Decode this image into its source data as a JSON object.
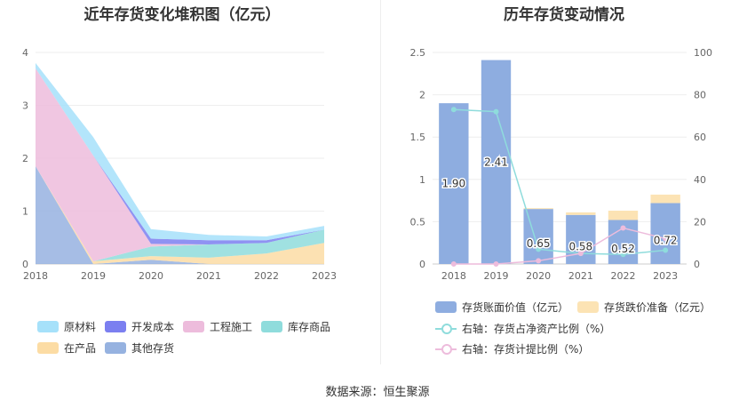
{
  "left_chart": {
    "title": "近年存货变化堆积图（亿元）",
    "legend": [
      {
        "label": "原材料",
        "color": "#a6e1fa"
      },
      {
        "label": "开发成本",
        "color": "#7b7ff0"
      },
      {
        "label": "工程施工",
        "color": "#edbcdc"
      },
      {
        "label": "库存商品",
        "color": "#8fdcdc"
      },
      {
        "label": "在产品",
        "color": "#fcdca4"
      },
      {
        "label": "其他存货",
        "color": "#96b2e0"
      }
    ]
  },
  "right_chart": {
    "title": "历年存货变动情况",
    "legend": [
      {
        "label": "存货账面价值（亿元）",
        "color": "#8eade0"
      },
      {
        "label": "存货跌价准备（亿元）",
        "color": "#fce3b4"
      },
      {
        "label": "右轴：存货占净资产比例（%）",
        "color": "#8fdcdc"
      },
      {
        "label": "右轴：存货计提比例（%）",
        "color": "#edbcdc"
      }
    ]
  },
  "source": "数据来源：恒生聚源",
  "chart_data": [
    {
      "type": "area",
      "stacked": true,
      "title": "近年存货变化堆积图（亿元）",
      "x": [
        "2018",
        "2019",
        "2020",
        "2021",
        "2022",
        "2023"
      ],
      "ylim": [
        0,
        4
      ],
      "yticks": [
        0,
        1,
        2,
        3,
        4
      ],
      "grid": true,
      "legend_position": "bottom",
      "series": [
        {
          "name": "其他存货",
          "color": "#96b2e0",
          "values": [
            1.85,
            0.0,
            0.08,
            0.0,
            0.0,
            0.0
          ]
        },
        {
          "name": "在产品",
          "color": "#fcdca4",
          "values": [
            0.0,
            0.05,
            0.07,
            0.12,
            0.2,
            0.4
          ]
        },
        {
          "name": "库存商品",
          "color": "#8fdcdc",
          "values": [
            0.0,
            0.0,
            0.18,
            0.25,
            0.2,
            0.25
          ]
        },
        {
          "name": "工程施工",
          "color": "#edbcdc",
          "values": [
            1.85,
            2.0,
            0.05,
            0.0,
            0.0,
            0.0
          ]
        },
        {
          "name": "开发成本",
          "color": "#7b7ff0",
          "values": [
            0.0,
            0.0,
            0.1,
            0.08,
            0.05,
            0.0
          ]
        },
        {
          "name": "原材料",
          "color": "#a6e1fa",
          "values": [
            0.1,
            0.35,
            0.18,
            0.1,
            0.07,
            0.07
          ]
        }
      ]
    },
    {
      "type": "bar",
      "stacked": true,
      "title": "历年存货变动情况",
      "categories": [
        "2018",
        "2019",
        "2020",
        "2021",
        "2022",
        "2023"
      ],
      "ylim": [
        0,
        2.5
      ],
      "yticks": [
        0,
        0.5,
        1,
        1.5,
        2,
        2.5
      ],
      "y2lim": [
        0,
        100
      ],
      "y2ticks": [
        0,
        20,
        40,
        60,
        80,
        100
      ],
      "grid": true,
      "legend_position": "bottom",
      "series": [
        {
          "name": "存货账面价值（亿元）",
          "color": "#8eade0",
          "axis": "left",
          "values": [
            1.9,
            2.41,
            0.65,
            0.58,
            0.52,
            0.72
          ],
          "labels": [
            "1.90",
            "2.41",
            "0.65",
            "0.58",
            "0.52",
            "0.72"
          ]
        },
        {
          "name": "存货跌价准备（亿元）",
          "color": "#fce3b4",
          "axis": "left",
          "values": [
            0.0,
            0.0,
            0.01,
            0.03,
            0.11,
            0.1
          ]
        },
        {
          "name": "右轴：存货占净资产比例（%）",
          "type": "line",
          "color": "#8fdcdc",
          "axis": "right",
          "values": [
            73,
            72,
            7,
            5,
            4.5,
            6.5
          ]
        },
        {
          "name": "右轴：存货计提比例（%）",
          "type": "line",
          "color": "#edbcdc",
          "axis": "right",
          "values": [
            0,
            0,
            1.5,
            5,
            17,
            12
          ]
        }
      ]
    }
  ]
}
